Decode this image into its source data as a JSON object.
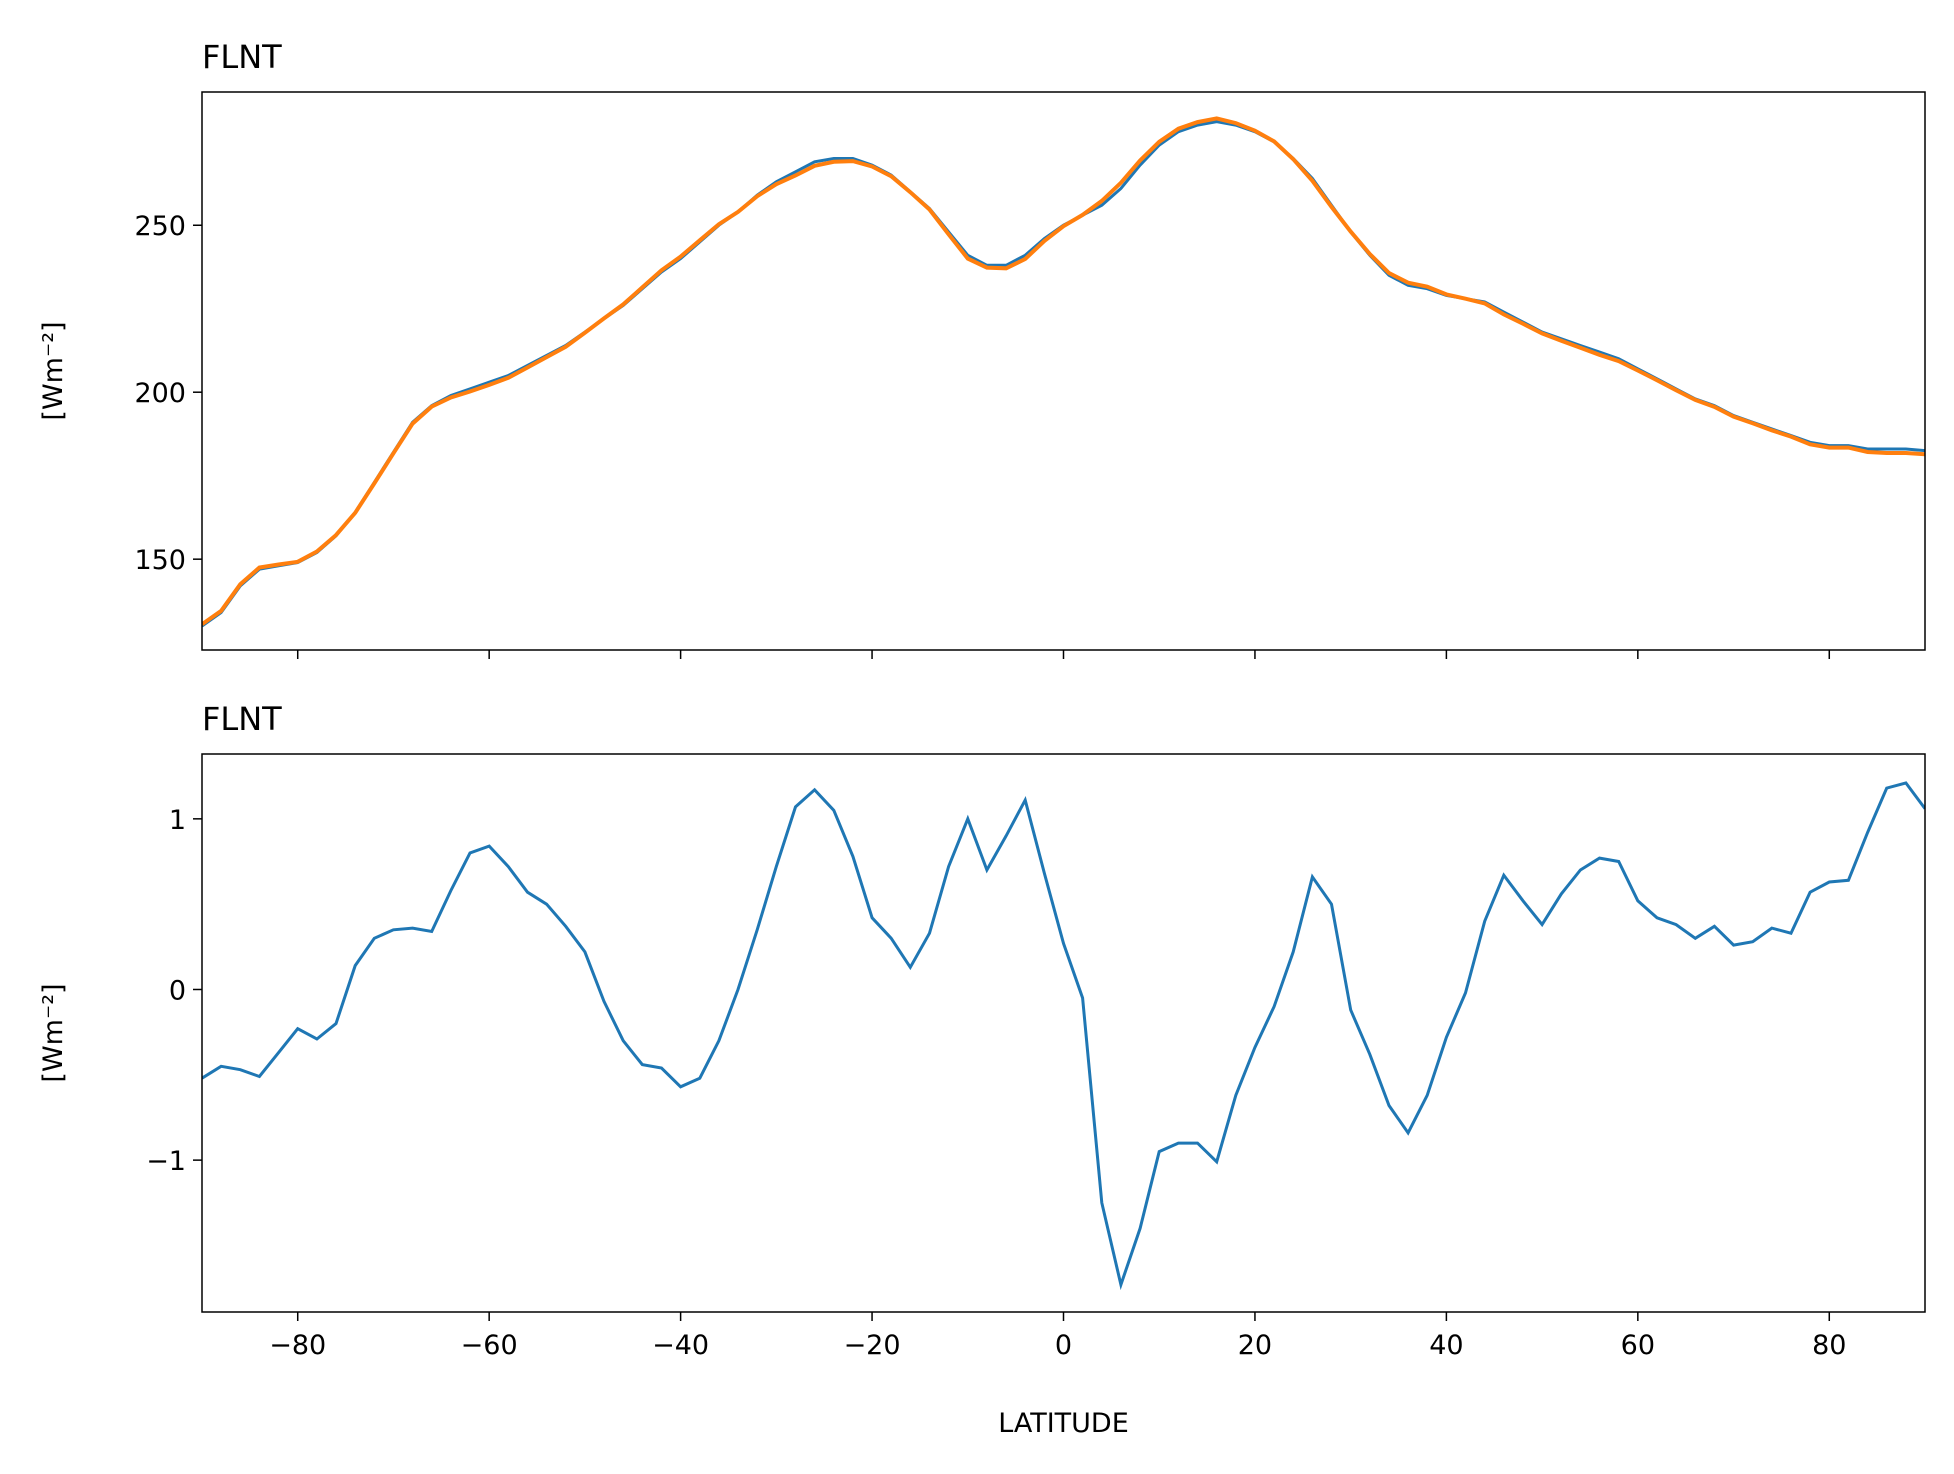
{
  "chart_data": [
    {
      "type": "line",
      "title": "FLNT",
      "ylabel": "[Wm⁻²]",
      "x": [
        -90,
        -88,
        -86,
        -84,
        -82,
        -80,
        -78,
        -76,
        -74,
        -72,
        -70,
        -68,
        -66,
        -64,
        -62,
        -60,
        -58,
        -56,
        -54,
        -52,
        -50,
        -48,
        -46,
        -44,
        -42,
        -40,
        -38,
        -36,
        -34,
        -32,
        -30,
        -28,
        -26,
        -24,
        -22,
        -20,
        -18,
        -16,
        -14,
        -12,
        -10,
        -8,
        -6,
        -4,
        -2,
        0,
        2,
        4,
        6,
        8,
        10,
        12,
        14,
        16,
        18,
        20,
        22,
        24,
        26,
        28,
        30,
        32,
        34,
        36,
        38,
        40,
        42,
        44,
        46,
        48,
        50,
        52,
        54,
        56,
        58,
        60,
        62,
        64,
        66,
        68,
        70,
        72,
        74,
        76,
        78,
        80,
        82,
        84,
        86,
        88,
        90
      ],
      "series": [
        {
          "color": "#1f77b4",
          "values": [
            130,
            134,
            142,
            147,
            148,
            149,
            152,
            157,
            164,
            173,
            182,
            191,
            196,
            199,
            201,
            203,
            205,
            208,
            211,
            214,
            218,
            222,
            226,
            231,
            236,
            240,
            245,
            250,
            254,
            259,
            263,
            266,
            269,
            270,
            270,
            268,
            265,
            260,
            255,
            248,
            241,
            238,
            238,
            241,
            246,
            250,
            253,
            256,
            261,
            268,
            274,
            278,
            280,
            281,
            280,
            278,
            275,
            270,
            264,
            256,
            248,
            241,
            235,
            232,
            231,
            229,
            228,
            227,
            224,
            221,
            218,
            216,
            214,
            212,
            210,
            207,
            204,
            201,
            198,
            196,
            193,
            191,
            189,
            187,
            185,
            184,
            184,
            183,
            183,
            183,
            182.5
          ]
        },
        {
          "color": "#ff7f0e",
          "values": [
            130.5,
            134.5,
            142.5,
            147.5,
            148.4,
            149.2,
            152.3,
            157.2,
            163.9,
            172.7,
            181.7,
            190.6,
            195.7,
            198.4,
            200.2,
            202.2,
            204.3,
            207.4,
            210.5,
            213.6,
            217.8,
            222.1,
            226.3,
            231.4,
            236.5,
            240.6,
            245.5,
            250.3,
            254.0,
            258.7,
            262.3,
            264.9,
            267.8,
            269.0,
            269.2,
            267.6,
            264.7,
            259.9,
            254.7,
            247.3,
            240.0,
            237.3,
            237.1,
            239.9,
            245.3,
            249.7,
            253.1,
            257.3,
            262.7,
            269.4,
            275.0,
            278.9,
            280.9,
            282.0,
            280.6,
            278.3,
            275.1,
            269.8,
            263.3,
            255.5,
            248.1,
            241.4,
            235.7,
            232.8,
            231.6,
            229.3,
            228.0,
            226.6,
            223.3,
            220.5,
            217.6,
            215.4,
            213.3,
            211.2,
            209.3,
            206.5,
            203.6,
            200.6,
            197.7,
            195.6,
            192.7,
            190.7,
            188.6,
            186.7,
            184.4,
            183.4,
            183.4,
            182.1,
            181.8,
            181.8,
            181.4
          ]
        }
      ],
      "xlim": [
        -90,
        90
      ],
      "xticks": [
        -80,
        -60,
        -40,
        -20,
        0,
        20,
        40,
        60,
        80
      ],
      "xtick_labels": false,
      "ylim": [
        122.8,
        289.9
      ],
      "yticks": [
        150,
        200,
        250
      ]
    },
    {
      "type": "line",
      "title": "FLNT",
      "ylabel": "[Wm⁻²]",
      "xlabel": "LATITUDE",
      "x": [
        -90,
        -88,
        -86,
        -84,
        -82,
        -80,
        -78,
        -76,
        -74,
        -72,
        -70,
        -68,
        -66,
        -64,
        -62,
        -60,
        -58,
        -56,
        -54,
        -52,
        -50,
        -48,
        -46,
        -44,
        -42,
        -40,
        -38,
        -36,
        -34,
        -32,
        -30,
        -28,
        -26,
        -24,
        -22,
        -20,
        -18,
        -16,
        -14,
        -12,
        -10,
        -8,
        -6,
        -4,
        -2,
        0,
        2,
        4,
        6,
        8,
        10,
        12,
        14,
        16,
        18,
        20,
        22,
        24,
        26,
        28,
        30,
        32,
        34,
        36,
        38,
        40,
        42,
        44,
        46,
        48,
        50,
        52,
        54,
        56,
        58,
        60,
        62,
        64,
        66,
        68,
        70,
        72,
        74,
        76,
        78,
        80,
        82,
        84,
        86,
        88,
        90
      ],
      "series": [
        {
          "color": "#1f77b4",
          "values": [
            -0.52,
            -0.45,
            -0.47,
            -0.51,
            -0.37,
            -0.23,
            -0.29,
            -0.2,
            0.14,
            0.3,
            0.35,
            0.36,
            0.34,
            0.58,
            0.8,
            0.84,
            0.72,
            0.57,
            0.5,
            0.37,
            0.22,
            -0.07,
            -0.3,
            -0.44,
            -0.46,
            -0.57,
            -0.52,
            -0.3,
            0,
            0.35,
            0.72,
            1.07,
            1.17,
            1.05,
            0.78,
            0.42,
            0.3,
            0.13,
            0.33,
            0.72,
            1.0,
            0.7,
            0.9,
            1.11,
            0.68,
            0.27,
            -0.05,
            -1.25,
            -1.73,
            -1.4,
            -0.95,
            -0.9,
            -0.9,
            -1.01,
            -0.62,
            -0.34,
            -0.1,
            0.22,
            0.66,
            0.5,
            -0.12,
            -0.38,
            -0.68,
            -0.84,
            -0.62,
            -0.28,
            -0.02,
            0.4,
            0.67,
            0.52,
            0.38,
            0.56,
            0.7,
            0.77,
            0.75,
            0.52,
            0.42,
            0.38,
            0.3,
            0.37,
            0.26,
            0.28,
            0.36,
            0.33,
            0.57,
            0.63,
            0.64,
            0.92,
            1.18,
            1.21,
            1.06
          ]
        }
      ],
      "xlim": [
        -90,
        90
      ],
      "xticks": [
        {
          "value": -80,
          "label": "−80"
        },
        {
          "value": -60,
          "label": "−60"
        },
        {
          "value": -40,
          "label": "−40"
        },
        {
          "value": -20,
          "label": "−20"
        },
        0,
        20,
        40,
        60,
        80
      ],
      "ylim": [
        -1.89,
        1.38
      ],
      "yticks": [
        {
          "value": -1,
          "label": "−1"
        },
        0,
        1
      ]
    }
  ]
}
